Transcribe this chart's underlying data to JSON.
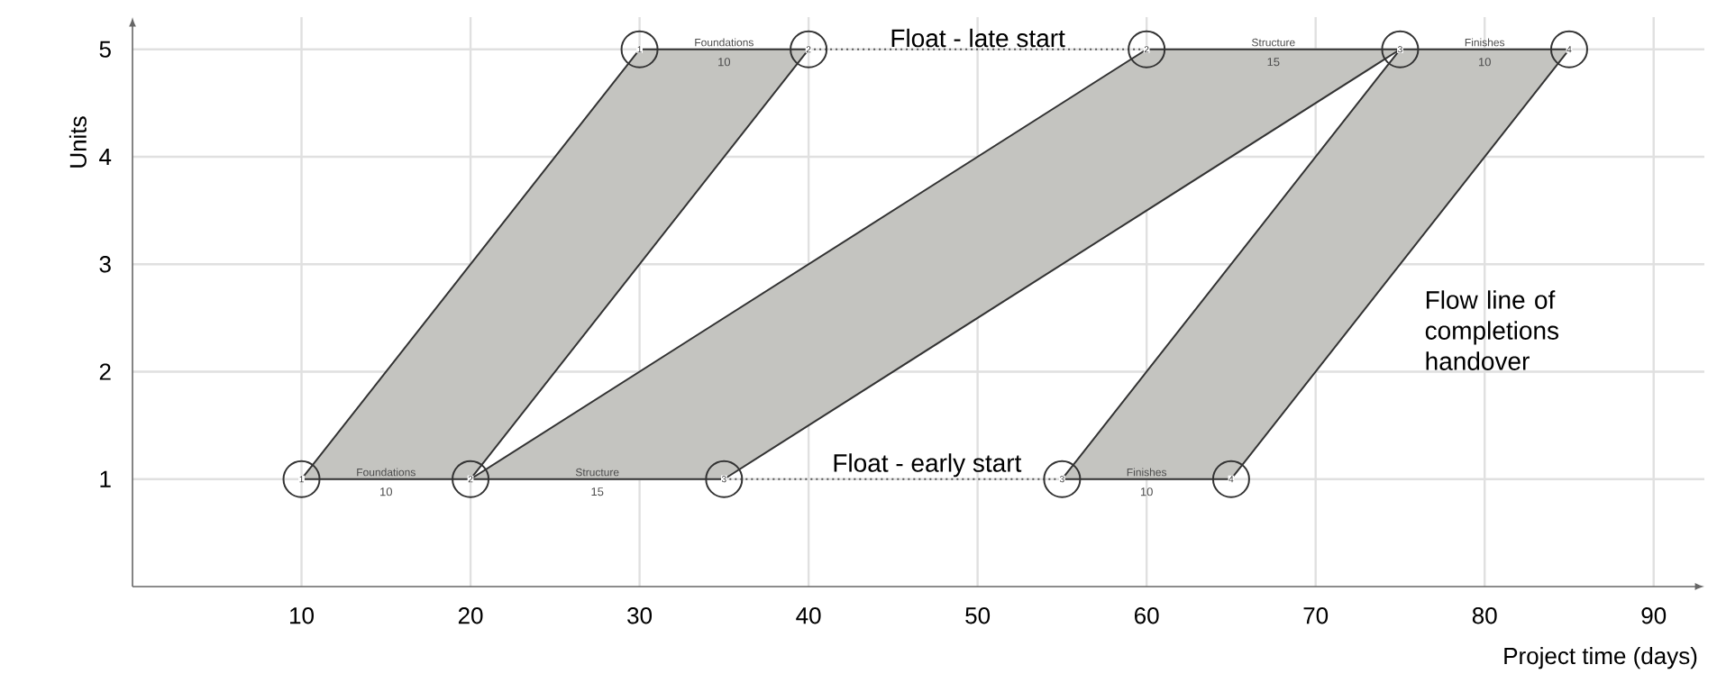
{
  "chart_data": {
    "type": "area",
    "xlabel": "Project time (days)",
    "ylabel": "Units",
    "xlim": [
      0,
      93
    ],
    "ylim": [
      0,
      5.3
    ],
    "xticks": [
      10,
      20,
      30,
      40,
      50,
      60,
      70,
      80,
      90
    ],
    "yticks": [
      1,
      2,
      3,
      4,
      5
    ],
    "grid": true,
    "series": [
      {
        "color": "#c4c4c0",
        "x": [
          10,
          20,
          40,
          30,
          10
        ],
        "values": [
          1,
          1,
          5,
          5,
          1
        ]
      },
      {
        "color": "#c4c4c0",
        "x": [
          20,
          35,
          75,
          60,
          20
        ],
        "values": [
          1,
          1,
          5,
          5,
          1
        ]
      },
      {
        "color": "#c4c4c0",
        "x": [
          55,
          65,
          85,
          75,
          55
        ],
        "values": [
          1,
          1,
          5,
          5,
          1
        ]
      },
      {
        "type": "line",
        "line_style": "dotted",
        "color": "#555555",
        "x": [
          40,
          60
        ],
        "values": [
          5,
          5
        ]
      },
      {
        "type": "line",
        "line_style": "dotted",
        "color": "#555555",
        "x": [
          35,
          55
        ],
        "values": [
          1,
          1
        ]
      },
      {
        "type": "scatter",
        "marker": "circle",
        "color": "#333333",
        "x": [
          10,
          20,
          35,
          55,
          65,
          30,
          40,
          60,
          75,
          85
        ],
        "values": [
          1,
          1,
          1,
          1,
          1,
          5,
          5,
          5,
          5,
          5
        ]
      }
    ],
    "annotations": [
      {
        "text": "Float - late start",
        "x": 50,
        "y": 5
      },
      {
        "text": "Float - early start",
        "x": 47,
        "y": 1
      },
      "Flow line of completions handover",
      "Foundations",
      "10",
      "Structure",
      "15",
      "Finishes",
      "10",
      "Foundations",
      "10",
      "Structure",
      "15",
      "Finishes",
      "10",
      {
        "text": "1",
        "x": 10,
        "y": 1
      },
      {
        "text": "2",
        "x": 20,
        "y": 1
      },
      {
        "text": "3",
        "x": 35,
        "y": 1
      },
      {
        "text": "3",
        "x": 55,
        "y": 1
      },
      {
        "text": "4",
        "x": 65,
        "y": 1
      },
      {
        "text": "1",
        "x": 30,
        "y": 5
      },
      {
        "text": "2",
        "x": 40,
        "y": 5
      },
      {
        "text": "2",
        "x": 60,
        "y": 5
      },
      {
        "text": "3",
        "x": 75,
        "y": 5
      },
      {
        "text": "4",
        "x": 85,
        "y": 5
      }
    ]
  }
}
